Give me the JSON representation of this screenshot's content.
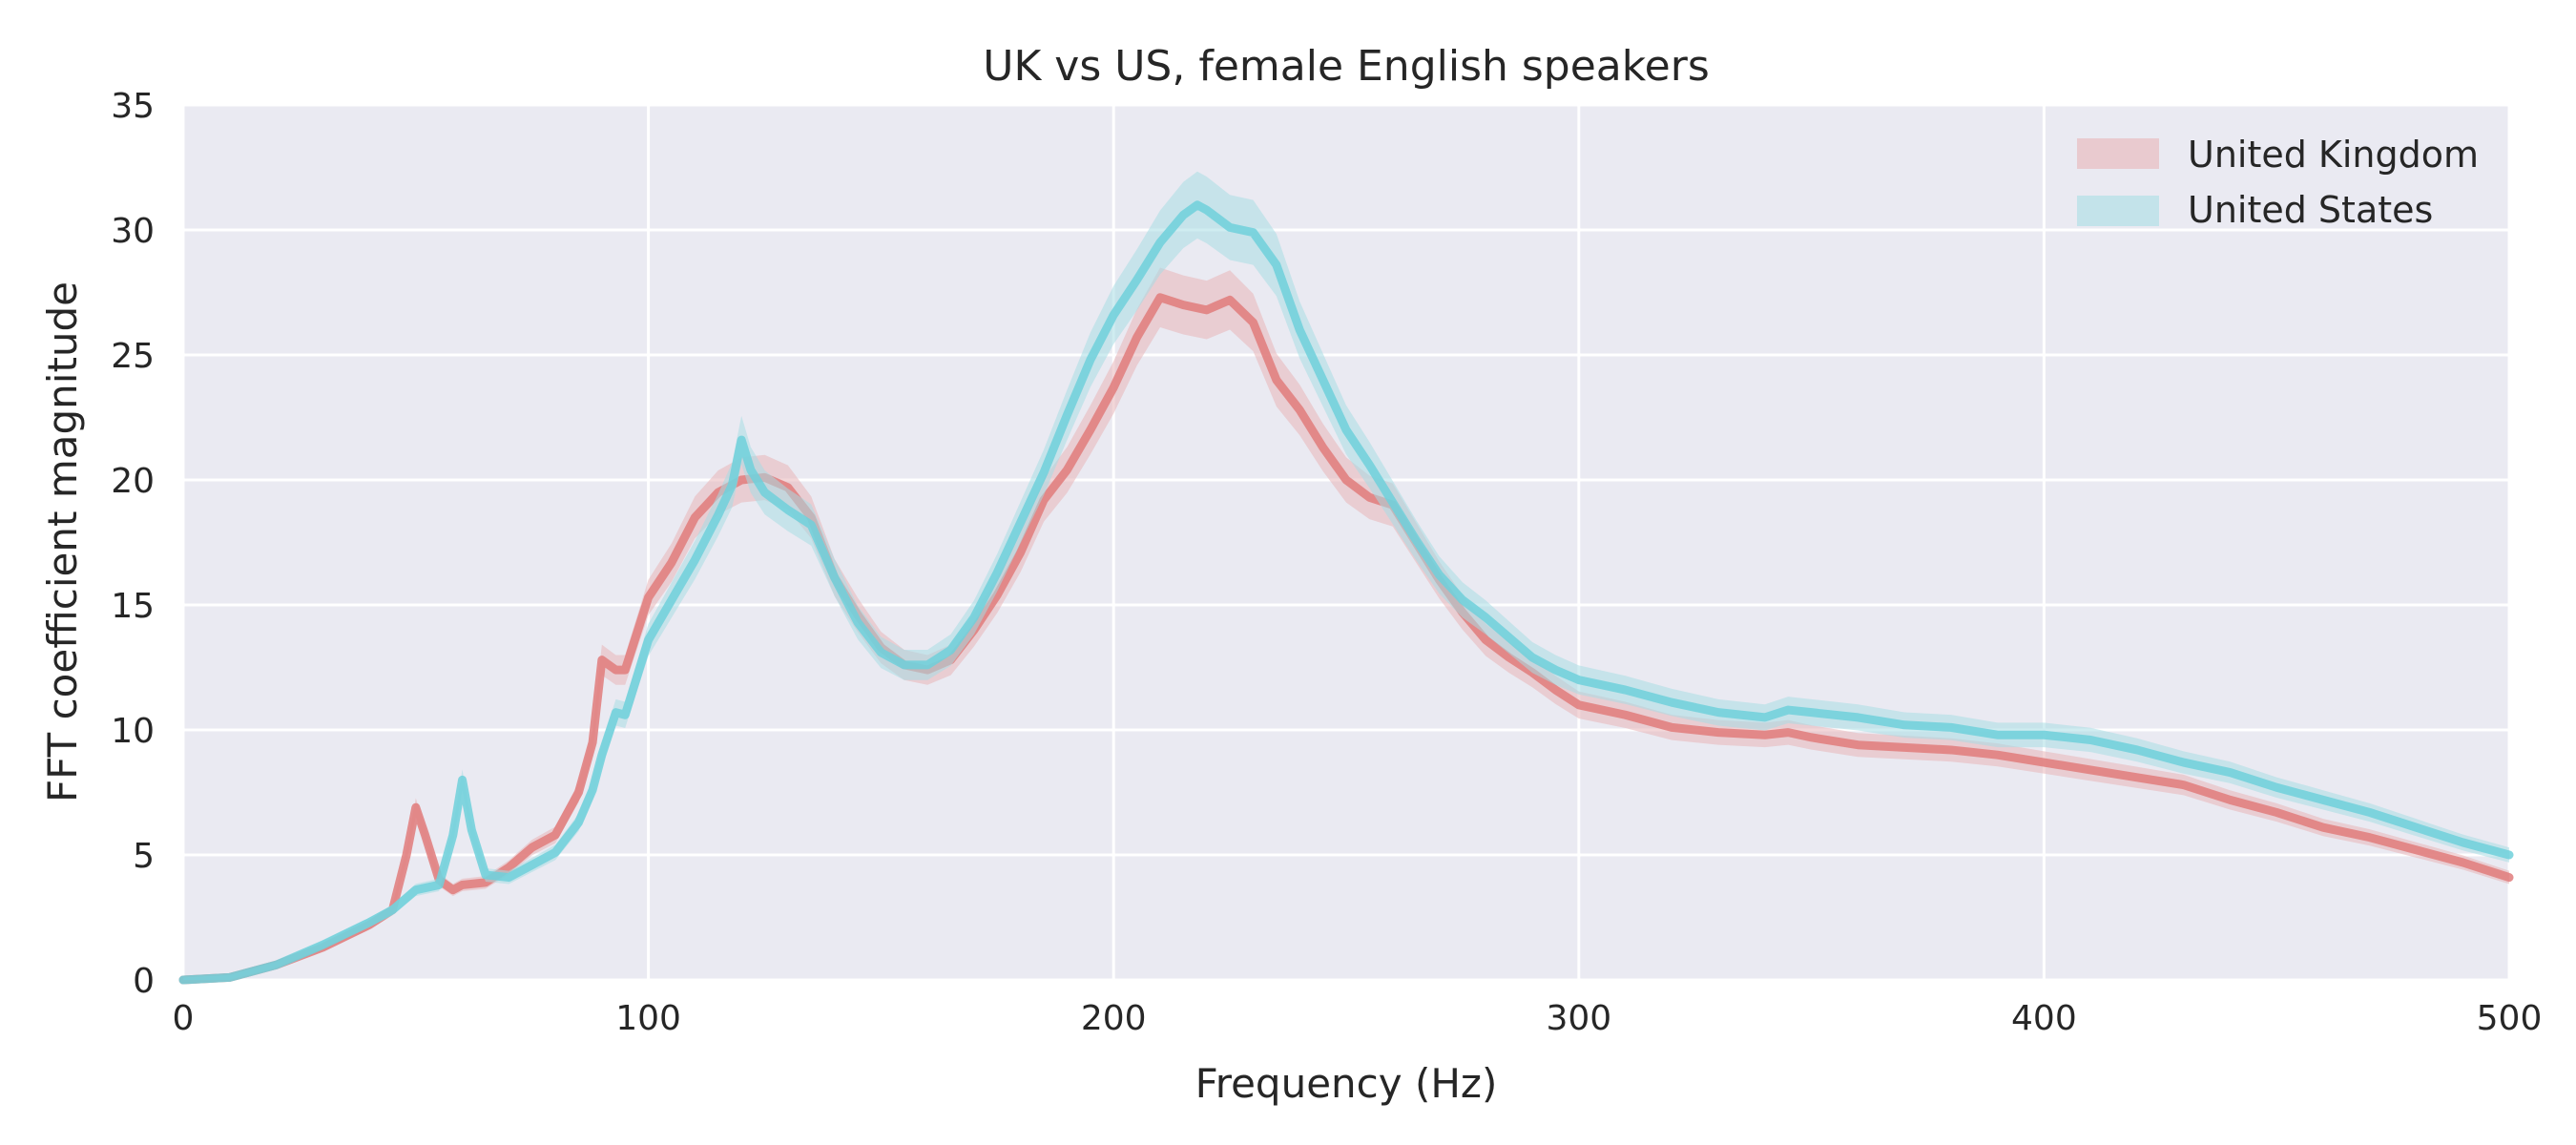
{
  "chart_data": {
    "type": "line",
    "title": "UK vs US, female English speakers",
    "xlabel": "Frequency (Hz)",
    "ylabel": "FFT coefficient magnitude",
    "xlim": [
      0,
      500
    ],
    "ylim": [
      0,
      35
    ],
    "xticks": [
      0,
      100,
      200,
      300,
      400,
      500
    ],
    "yticks": [
      0,
      5,
      10,
      15,
      20,
      25,
      30,
      35
    ],
    "grid": true,
    "legend_position": "top-right",
    "background_color": "#eaeaf2",
    "series": [
      {
        "name": "United Kingdom",
        "color": "#e07b7b",
        "band_color": "#e8b4b8",
        "x": [
          0,
          10,
          20,
          30,
          40,
          45,
          48,
          50,
          52,
          55,
          58,
          60,
          65,
          70,
          75,
          80,
          85,
          88,
          90,
          93,
          95,
          100,
          105,
          110,
          115,
          120,
          125,
          130,
          135,
          140,
          145,
          150,
          155,
          160,
          165,
          170,
          175,
          180,
          185,
          190,
          195,
          200,
          205,
          210,
          215,
          220,
          225,
          230,
          235,
          240,
          245,
          250,
          255,
          260,
          265,
          270,
          275,
          280,
          285,
          290,
          295,
          300,
          310,
          320,
          330,
          340,
          345,
          350,
          360,
          370,
          380,
          390,
          400,
          410,
          420,
          430,
          440,
          450,
          460,
          470,
          480,
          490,
          500
        ],
        "y": [
          0,
          0.1,
          0.6,
          1.3,
          2.2,
          2.8,
          5.0,
          6.9,
          5.8,
          4.0,
          3.6,
          3.8,
          3.9,
          4.5,
          5.3,
          5.8,
          7.5,
          9.5,
          12.8,
          12.4,
          12.4,
          15.3,
          16.7,
          18.5,
          19.5,
          20.0,
          20.1,
          19.7,
          18.5,
          16.1,
          14.6,
          13.3,
          12.6,
          12.4,
          12.8,
          14.0,
          15.4,
          17.1,
          19.2,
          20.4,
          22.0,
          23.7,
          25.7,
          27.3,
          27.0,
          26.8,
          27.2,
          26.3,
          24.0,
          22.8,
          21.3,
          20.0,
          19.3,
          19.0,
          17.5,
          16.0,
          14.7,
          13.6,
          12.9,
          12.3,
          11.6,
          11.0,
          10.6,
          10.1,
          9.9,
          9.8,
          9.9,
          9.7,
          9.4,
          9.3,
          9.2,
          9.0,
          8.7,
          8.4,
          8.1,
          7.8,
          7.2,
          6.7,
          6.1,
          5.7,
          5.2,
          4.7,
          4.1
        ]
      },
      {
        "name": "United States",
        "color": "#6fd0da",
        "band_color": "#a8dde4",
        "x": [
          0,
          10,
          20,
          30,
          40,
          45,
          50,
          55,
          58,
          60,
          62,
          65,
          70,
          75,
          80,
          85,
          88,
          90,
          93,
          95,
          100,
          105,
          110,
          115,
          118,
          120,
          122,
          125,
          130,
          135,
          140,
          145,
          150,
          155,
          160,
          165,
          170,
          175,
          180,
          185,
          190,
          195,
          200,
          205,
          210,
          215,
          218,
          220,
          225,
          230,
          235,
          240,
          245,
          250,
          255,
          260,
          265,
          270,
          275,
          280,
          285,
          290,
          295,
          300,
          310,
          320,
          330,
          340,
          345,
          350,
          360,
          370,
          380,
          390,
          400,
          410,
          420,
          430,
          440,
          450,
          460,
          470,
          480,
          490,
          500
        ],
        "y": [
          0,
          0.1,
          0.6,
          1.4,
          2.3,
          2.8,
          3.6,
          3.8,
          5.8,
          8.0,
          6.0,
          4.2,
          4.1,
          4.6,
          5.1,
          6.3,
          7.6,
          9.0,
          10.7,
          10.6,
          13.6,
          15.2,
          16.8,
          18.6,
          19.8,
          21.6,
          20.4,
          19.5,
          18.8,
          18.2,
          16.1,
          14.3,
          13.1,
          12.6,
          12.6,
          13.2,
          14.5,
          16.3,
          18.3,
          20.3,
          22.6,
          24.8,
          26.6,
          28.0,
          29.5,
          30.6,
          31.0,
          30.8,
          30.1,
          29.9,
          28.6,
          26.0,
          24.0,
          22.0,
          20.6,
          19.1,
          17.6,
          16.2,
          15.2,
          14.5,
          13.7,
          12.9,
          12.4,
          12.0,
          11.6,
          11.1,
          10.7,
          10.5,
          10.8,
          10.7,
          10.5,
          10.2,
          10.1,
          9.8,
          9.8,
          9.6,
          9.2,
          8.7,
          8.3,
          7.7,
          7.2,
          6.7,
          6.1,
          5.5,
          5.0
        ]
      }
    ]
  }
}
